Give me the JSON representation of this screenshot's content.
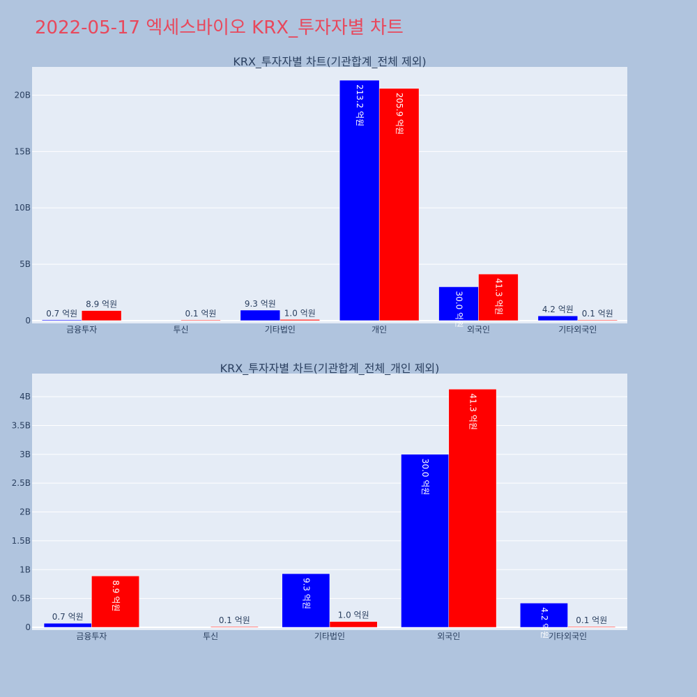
{
  "page_title": "2022-05-17 엑세스바이오 KRX_투자자별 차트",
  "colors": {
    "page_bg": "#b0c4de",
    "plot_bg": "#e5ecf6",
    "title": "#e8485c",
    "text": "#2a3f5f",
    "buy": "#0000ff",
    "sell": "#ff0000"
  },
  "chart_data": [
    {
      "type": "bar",
      "title": "KRX_투자자별 차트(기관합계_전체 제외)",
      "categories": [
        "금융투자",
        "투신",
        "기타법인",
        "개인",
        "외국인",
        "기타외국인"
      ],
      "series": [
        {
          "color": "#0000ff",
          "values": [
            0.07,
            0.0,
            0.93,
            21.32,
            3.0,
            0.42
          ],
          "labels": [
            "0.7 억원",
            "",
            "9.3 억원",
            "213.2 억원",
            "30.0 억원",
            "4.2 억원"
          ]
        },
        {
          "color": "#ff0000",
          "values": [
            0.89,
            0.01,
            0.1,
            20.59,
            4.13,
            0.01
          ],
          "labels": [
            "8.9 억원",
            "0.1 억원",
            "1.0 억원",
            "205.9 억원",
            "41.3 억원",
            "0.1 억원"
          ]
        }
      ],
      "ylim": [
        0,
        22.5
      ],
      "yticks": [
        0,
        5,
        10,
        15,
        20
      ],
      "ytick_labels": [
        "0",
        "5B",
        "10B",
        "15B",
        "20B"
      ],
      "grid": true
    },
    {
      "type": "bar",
      "title": "KRX_투자자별 차트(기관합계_전체_개인 제외)",
      "categories": [
        "금융투자",
        "투신",
        "기타법인",
        "외국인",
        "기타외국인"
      ],
      "series": [
        {
          "color": "#0000ff",
          "values": [
            0.07,
            0.0,
            0.93,
            3.0,
            0.42
          ],
          "labels": [
            "0.7 억원",
            "",
            "9.3 억원",
            "30.0 억원",
            "4.2 억원"
          ]
        },
        {
          "color": "#ff0000",
          "values": [
            0.89,
            0.01,
            0.1,
            4.13,
            0.01
          ],
          "labels": [
            "8.9 억원",
            "0.1 억원",
            "1.0 억원",
            "41.3 억원",
            "0.1 억원"
          ]
        }
      ],
      "ylim": [
        0,
        4.4
      ],
      "yticks": [
        0,
        0.5,
        1,
        1.5,
        2,
        2.5,
        3,
        3.5,
        4
      ],
      "ytick_labels": [
        "0",
        "0.5B",
        "1B",
        "1.5B",
        "2B",
        "2.5B",
        "3B",
        "3.5B",
        "4B"
      ],
      "grid": true
    }
  ]
}
